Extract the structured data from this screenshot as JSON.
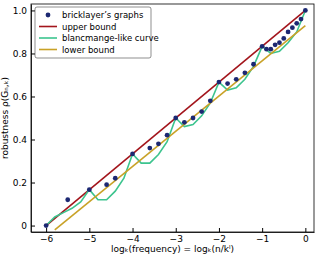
{
  "chart_data": {
    "type": "line",
    "x_label": "logₖ(frequency) = logₖ(n/kˡ)",
    "y_label": "robustness ρ(Gₙ,ₖ)",
    "xlim": [
      -6.35,
      0.2
    ],
    "ylim": [
      -0.03,
      1.03
    ],
    "xticks": [
      {
        "value": -6,
        "label": "−6"
      },
      {
        "value": -5,
        "label": "−5"
      },
      {
        "value": -4,
        "label": "−4"
      },
      {
        "value": -3,
        "label": "−3"
      },
      {
        "value": -2,
        "label": "−2"
      },
      {
        "value": -1,
        "label": "−1"
      },
      0
    ],
    "yticks": [
      0,
      0.2,
      0.4,
      0.6,
      0.8,
      {
        "value": 1.0,
        "label": "1.0"
      }
    ],
    "grid": false,
    "legend": "upper left",
    "series": [
      {
        "name": "bricklayer’s graphs",
        "type": "scatter",
        "color": "#1c2872",
        "marker": "circle",
        "x": [
          -6.0,
          -5.5,
          -5.0,
          -4.6,
          -4.4,
          -4.0,
          -3.6,
          -3.4,
          -3.2,
          -3.0,
          -2.8,
          -2.6,
          -2.4,
          -2.2,
          -2.0,
          -1.8,
          -1.6,
          -1.4,
          -1.2,
          -1.0,
          -0.9,
          -0.8,
          -0.7,
          -0.6,
          -0.5,
          -0.4,
          -0.3,
          -0.2,
          -0.1,
          0.0
        ],
        "values": [
          0.0,
          0.12,
          0.167,
          0.19,
          0.22,
          0.333,
          0.36,
          0.38,
          0.42,
          0.5,
          0.48,
          0.5,
          0.53,
          0.58,
          0.667,
          0.66,
          0.68,
          0.71,
          0.75,
          0.833,
          0.82,
          0.82,
          0.84,
          0.85,
          0.87,
          0.9,
          0.92,
          0.94,
          0.96,
          1.0
        ]
      },
      {
        "name": "upper bound",
        "type": "line",
        "color": "#a3151c",
        "line_style": "solid",
        "x": [
          -6.0,
          0.0
        ],
        "values": [
          0.0,
          1.0
        ]
      },
      {
        "name": "blancmange-like curve",
        "type": "line",
        "color": "#3cc48e",
        "line_style": "solid",
        "x": [
          -6.0,
          -5.8,
          -5.6,
          -5.4,
          -5.2,
          -5.0,
          -4.8,
          -4.6,
          -4.4,
          -4.2,
          -4.0,
          -3.8,
          -3.6,
          -3.4,
          -3.2,
          -3.0,
          -2.8,
          -2.6,
          -2.4,
          -2.2,
          -2.0,
          -1.8,
          -1.6,
          -1.4,
          -1.2,
          -1.0,
          -0.8,
          -0.6,
          -0.4,
          -0.2,
          0.0
        ],
        "values": [
          0.0,
          0.04,
          0.06,
          0.08,
          0.11,
          0.167,
          0.12,
          0.12,
          0.16,
          0.22,
          0.333,
          0.29,
          0.29,
          0.33,
          0.39,
          0.5,
          0.46,
          0.47,
          0.51,
          0.57,
          0.667,
          0.63,
          0.64,
          0.68,
          0.74,
          0.833,
          0.8,
          0.81,
          0.85,
          0.9,
          1.0
        ]
      },
      {
        "name": "lower bound",
        "type": "line",
        "color": "#c9a227",
        "line_style": "solid",
        "x": [
          -5.8,
          0.0
        ],
        "values": [
          -0.02,
          0.93
        ]
      }
    ]
  }
}
